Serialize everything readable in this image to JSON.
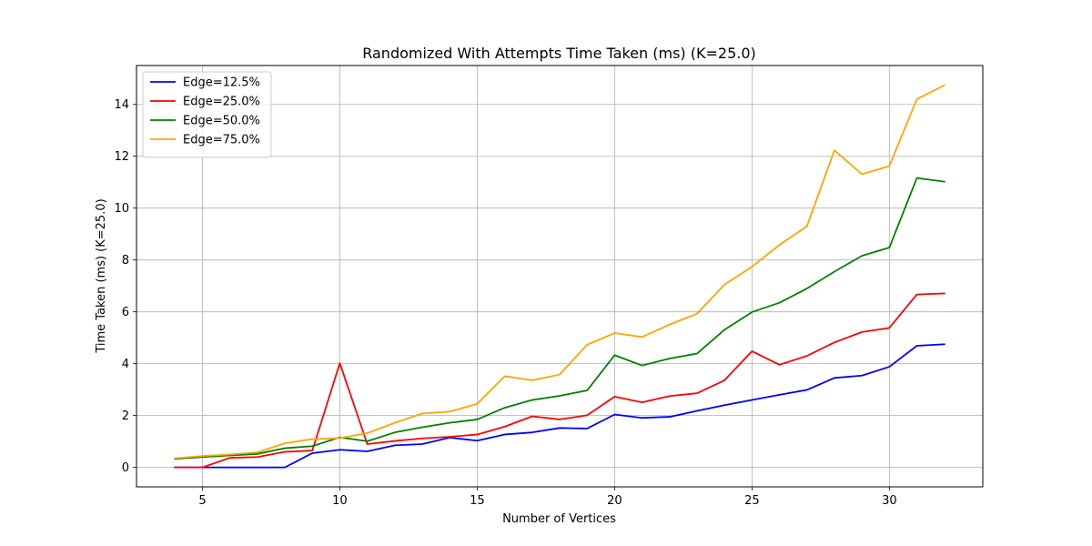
{
  "chart_data": {
    "type": "line",
    "title": "Randomized With Attempts Time Taken (ms) (K=25.0)",
    "xlabel": "Number of Vertices",
    "ylabel": "Time Taken (ms) (K=25.0)",
    "xlim": [
      2.6,
      33.4
    ],
    "ylim": [
      -0.75,
      15.5
    ],
    "xticks": [
      5,
      10,
      15,
      20,
      25,
      30
    ],
    "yticks": [
      0,
      2,
      4,
      6,
      8,
      10,
      12,
      14
    ],
    "grid": true,
    "legend_position": "top-left",
    "x": [
      4,
      5,
      6,
      7,
      8,
      9,
      10,
      11,
      12,
      13,
      14,
      15,
      16,
      17,
      18,
      19,
      20,
      21,
      22,
      23,
      24,
      25,
      26,
      27,
      28,
      29,
      30,
      31,
      32
    ],
    "series": [
      {
        "name": "Edge=12.5%",
        "color": "#0000ff",
        "values": [
          0,
          0,
          0,
          0,
          0,
          0.55,
          0.68,
          0.62,
          0.85,
          0.9,
          1.15,
          1.03,
          1.27,
          1.35,
          1.52,
          1.5,
          2.04,
          1.91,
          1.95,
          2.18,
          2.4,
          2.6,
          2.8,
          2.99,
          3.45,
          3.54,
          3.88,
          4.69,
          4.75
        ]
      },
      {
        "name": "Edge=25.0%",
        "color": "#ff0000",
        "values": [
          0,
          0,
          0.37,
          0.4,
          0.6,
          0.65,
          4.02,
          0.9,
          1.02,
          1.12,
          1.18,
          1.27,
          1.57,
          1.97,
          1.85,
          2.01,
          2.73,
          2.51,
          2.75,
          2.86,
          3.36,
          4.48,
          3.96,
          4.3,
          4.82,
          5.22,
          5.38,
          6.67,
          6.71
        ]
      },
      {
        "name": "Edge=50.0%",
        "color": "#008000",
        "values": [
          0.33,
          0.4,
          0.46,
          0.52,
          0.74,
          0.82,
          1.16,
          1.01,
          1.35,
          1.55,
          1.72,
          1.85,
          2.3,
          2.6,
          2.76,
          2.97,
          4.33,
          3.93,
          4.2,
          4.39,
          5.31,
          5.99,
          6.35,
          6.9,
          7.55,
          8.16,
          8.48,
          11.16,
          11.02
        ]
      },
      {
        "name": "Edge=75.0%",
        "color": "#ffa500",
        "values": [
          0.35,
          0.44,
          0.5,
          0.58,
          0.93,
          1.09,
          1.13,
          1.32,
          1.72,
          2.08,
          2.15,
          2.45,
          3.52,
          3.36,
          3.58,
          4.73,
          5.18,
          5.03,
          5.51,
          5.93,
          7.05,
          7.74,
          8.58,
          9.3,
          12.23,
          11.31,
          11.62,
          14.2,
          14.74
        ]
      }
    ]
  }
}
